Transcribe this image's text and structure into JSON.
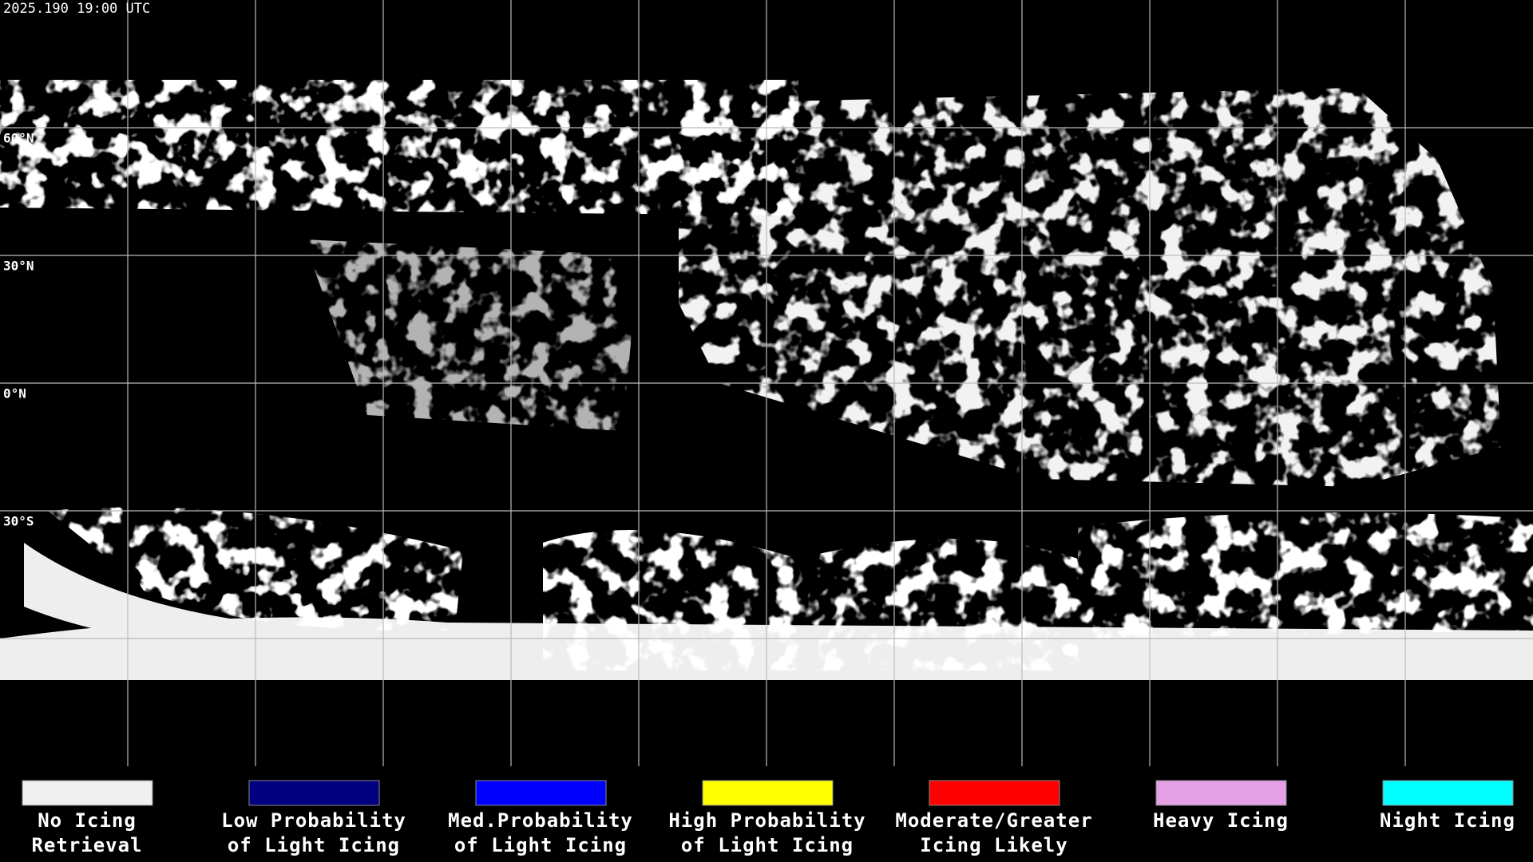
{
  "header": {
    "timestamp": "2025.190 19:00 UTC"
  },
  "latitude_labels": [
    "60°N",
    "30°N",
    "0°N",
    "30°S"
  ],
  "legend": {
    "items": [
      {
        "label": [
          "No Icing",
          "Retrieval"
        ],
        "color": "#f0f0f0"
      },
      {
        "label": [
          "Low Probability",
          "of Light Icing"
        ],
        "color": "#000080"
      },
      {
        "label": [
          "Med.Probability",
          "of Light Icing"
        ],
        "color": "#0000ff"
      },
      {
        "label": [
          "High Probability",
          "of Light Icing"
        ],
        "color": "#ffff00"
      },
      {
        "label": [
          "Moderate/Greater",
          "Icing Likely"
        ],
        "color": "#ff0000"
      },
      {
        "label": [
          "Heavy Icing"
        ],
        "color": "#e6a0e6"
      },
      {
        "label": [
          "Night Icing"
        ],
        "color": "#00ffff"
      }
    ]
  }
}
